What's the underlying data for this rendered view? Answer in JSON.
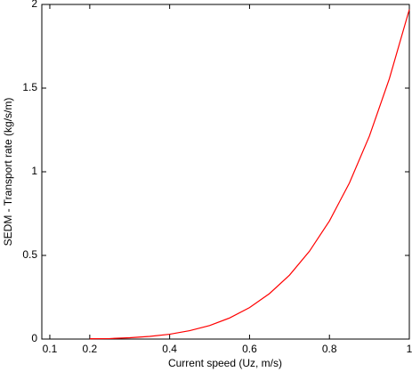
{
  "chart_data": {
    "type": "line",
    "x_label": "Current speed (Uz, m/s)",
    "y_label": "SEDM - Transport rate (kg/s/m)",
    "x": [
      0.2,
      0.25,
      0.3,
      0.35,
      0.4,
      0.45,
      0.5,
      0.55,
      0.6,
      0.65,
      0.7,
      0.75,
      0.8,
      0.85,
      0.9,
      0.95,
      1
    ],
    "series": [
      {
        "color": "#ff0000",
        "values": [
          0.002,
          0.003,
          0.008,
          0.016,
          0.029,
          0.05,
          0.081,
          0.126,
          0.188,
          0.272,
          0.382,
          0.525,
          0.706,
          0.933,
          1.213,
          1.556,
          1.97
        ]
      }
    ],
    "xlim": [
      0.08,
      1
    ],
    "xticks": [
      0.1,
      0.2,
      0.4,
      0.6,
      0.8,
      1
    ],
    "ylim": [
      0,
      2
    ],
    "yticks": [
      0,
      0.5,
      1,
      1.5,
      2
    ],
    "grid": false
  }
}
